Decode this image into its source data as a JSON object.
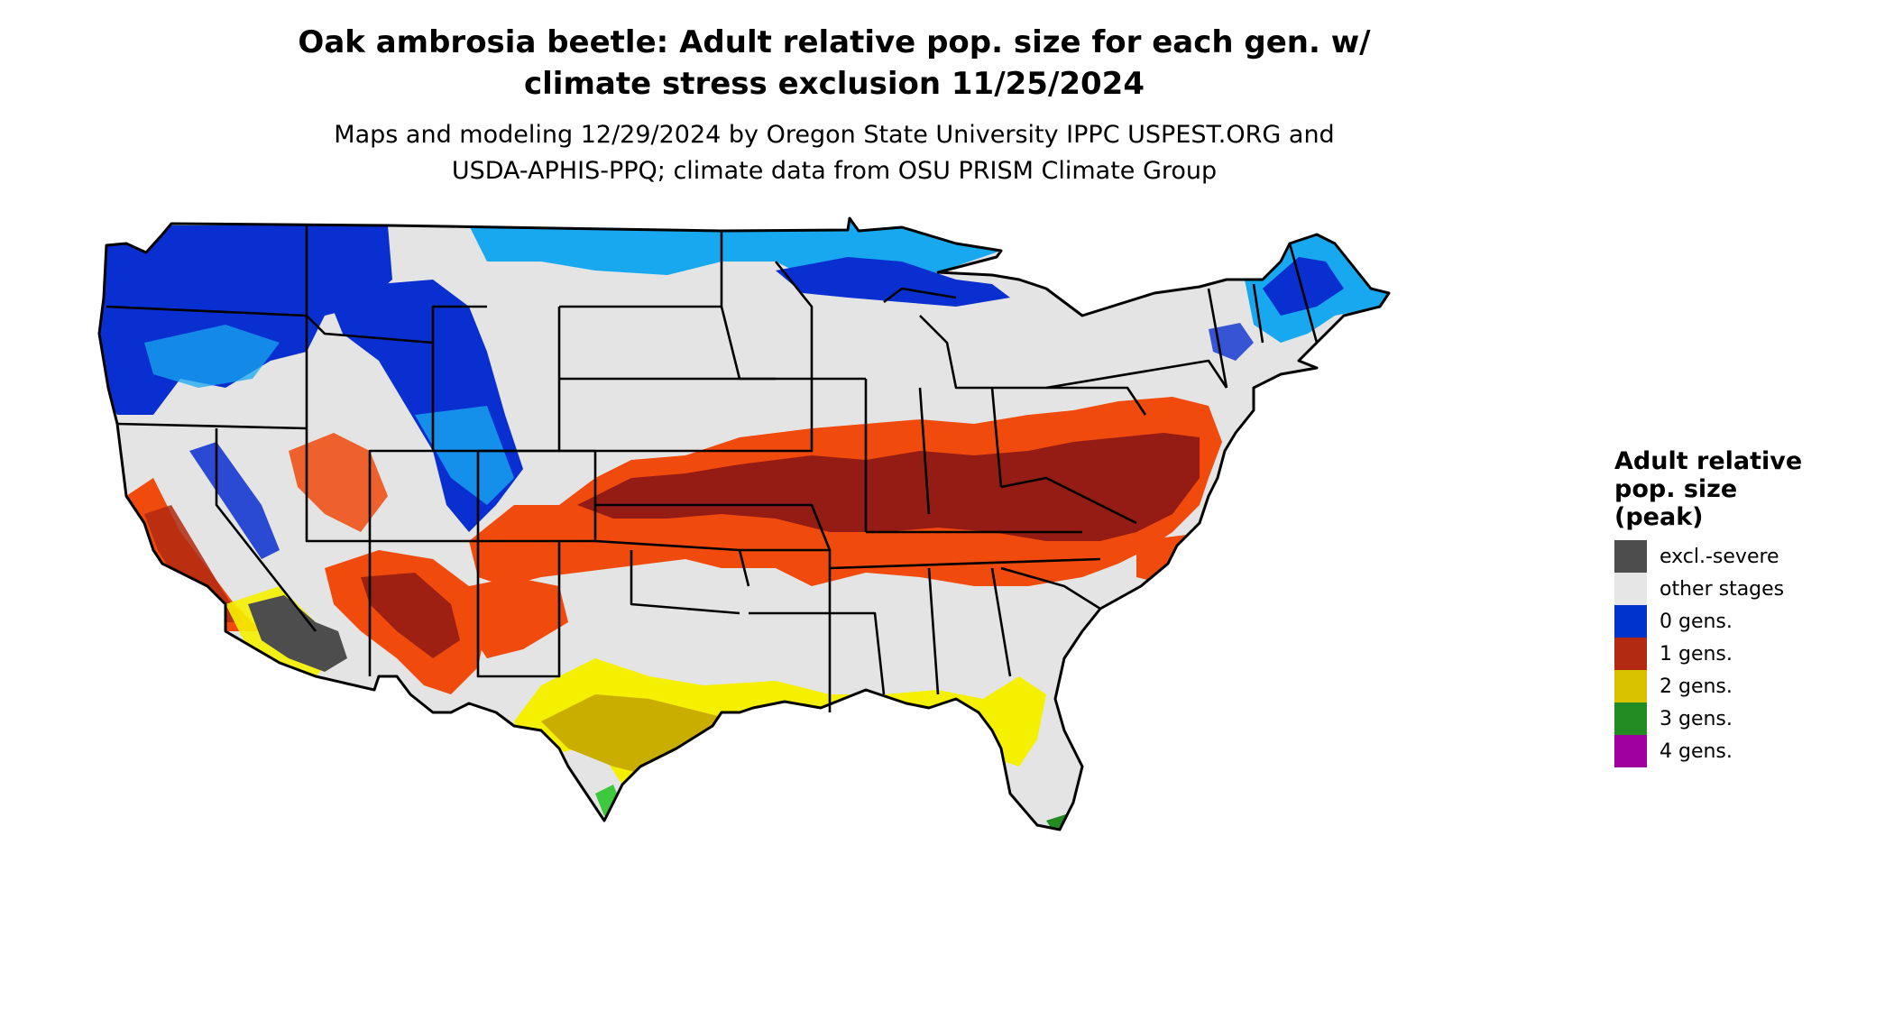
{
  "title_lines": [
    "Oak ambrosia beetle: Adult relative pop. size for each gen. w/",
    "climate stress exclusion 11/25/2024"
  ],
  "subtitle_lines": [
    "Maps and modeling 12/29/2024 by Oregon State University IPPC USPEST.ORG and",
    "USDA-APHIS-PPQ; climate data from OSU PRISM Climate Group"
  ],
  "legend": {
    "title_lines": [
      "Adult relative",
      "pop. size",
      "(peak)"
    ],
    "items": [
      {
        "label": "excl.-severe",
        "color": "#4d4d4d"
      },
      {
        "label": "other stages",
        "color": "#e6e6e6"
      },
      {
        "label": "0 gens.",
        "color": "#0033cc"
      },
      {
        "label": "1 gens.",
        "color": "#b22a12"
      },
      {
        "label": "2 gens.",
        "color": "#d9c200"
      },
      {
        "label": "3 gens.",
        "color": "#228b22"
      },
      {
        "label": "4 gens.",
        "color": "#a000a0"
      }
    ]
  },
  "map_colors": {
    "land": "#e4e4e4",
    "excl_severe": "#4d4d4d",
    "gen0_dark": "#0a2fd0",
    "gen0_light": "#17a8f0",
    "gen1_orange": "#f04a0c",
    "gen1_dark": "#941c14",
    "gen2_yellow": "#f5ef00",
    "gen2_olive": "#c9ae00",
    "gen3_green": "#3ec83e",
    "border": "#000000"
  }
}
